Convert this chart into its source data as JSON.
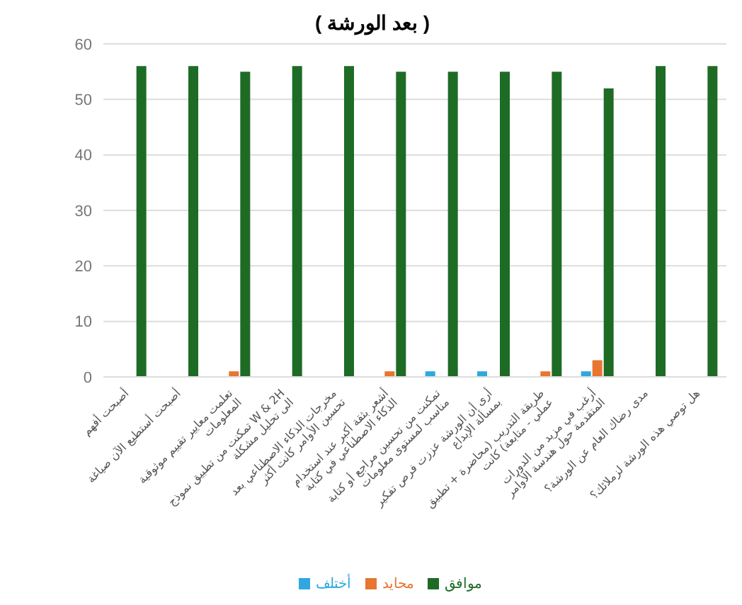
{
  "chart_data": {
    "type": "bar",
    "title": "( بعد الورشة )",
    "categories": [
      "أصبحت أفهم",
      "أصبحت أستطيع الآن صياغة",
      "تعلمت معايير تقييم موثوقية المعلومات",
      "تمكنت من تطبيق نموذج W & 2H الى تحليل مشكلة",
      "مخرجات الذكاء الاصطناعي بعد تحسين الأوامر كانت أكثر",
      "أشعر بثقة أكبر عند استخدام الذكاء الاصطناعي في كتابة",
      "تمكنت من تحسين مراجع أو كتابة مناسب لمستوى معلومات",
      "أرى أن الورشة عززت فرص تفكير بمسألة الإبداع",
      "طريقة التدريب (محاضرة + تطبيق عملي - متابعة) كانت",
      "أرغب في مزيد من الدورات المتقدمة حول هندسة الأوامر",
      "مدى رضاك العام عن الورشة؟",
      "هل توصي هذه الورشة لزملائك؟"
    ],
    "series": [
      {
        "name": "أختلف",
        "color": "#2ea8df",
        "values": [
          0,
          0,
          0,
          0,
          0,
          0,
          1,
          1,
          0,
          1,
          0,
          0
        ]
      },
      {
        "name": "محايد",
        "color": "#e87530",
        "values": [
          0,
          0,
          1,
          0,
          0,
          1,
          0,
          0,
          1,
          3,
          0,
          0
        ]
      },
      {
        "name": "موافق",
        "color": "#1e6b26",
        "values": [
          56,
          56,
          55,
          56,
          56,
          55,
          55,
          55,
          55,
          52,
          56,
          56
        ]
      }
    ],
    "ylim": [
      0,
      60
    ],
    "yticks": [
      0,
      10,
      20,
      30,
      40,
      50,
      60
    ],
    "grid": "y",
    "legend": "bottom"
  }
}
